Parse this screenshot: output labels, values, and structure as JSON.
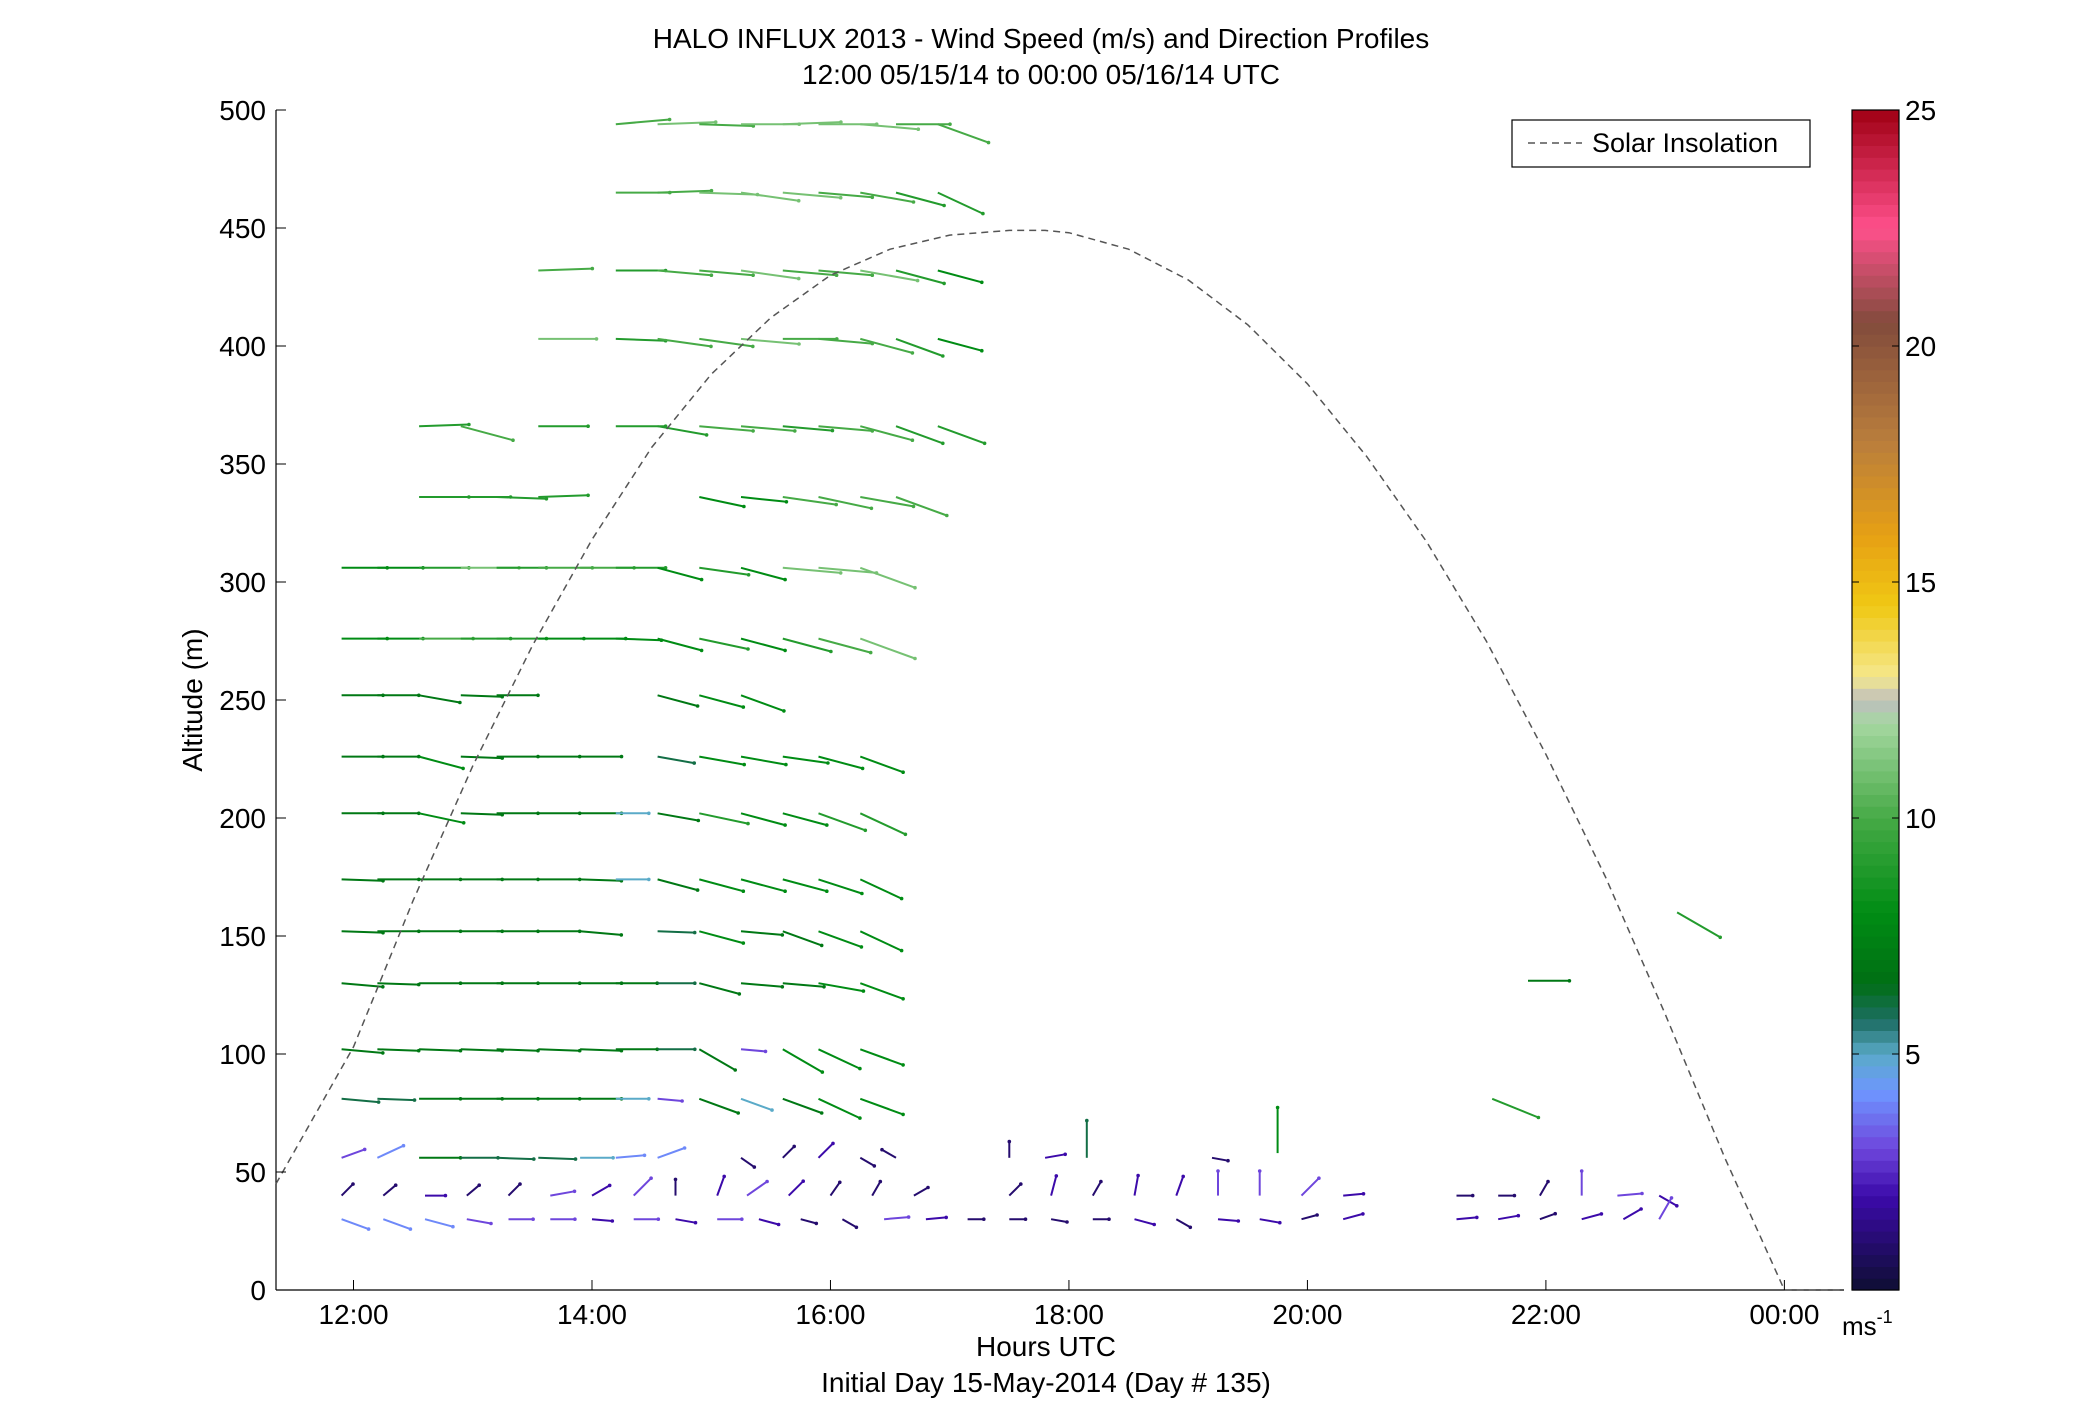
{
  "chart_data": {
    "type": "scatter",
    "title": "HALO INFLUX 2013 - Wind Speed (m/s) and Direction Profiles",
    "subtitle": "12:00 05/15/14 to 00:00 05/16/14  UTC",
    "xlabel": "Hours UTC",
    "footer": "Initial Day 15-May-2014 (Day # 135)",
    "ylabel": "Altitude (m)",
    "xlim": [
      11.35,
      24.5
    ],
    "ylim": [
      0,
      500
    ],
    "xticks": [
      {
        "value": 12,
        "label": "12:00"
      },
      {
        "value": 14,
        "label": "14:00"
      },
      {
        "value": 16,
        "label": "16:00"
      },
      {
        "value": 18,
        "label": "18:00"
      },
      {
        "value": 20,
        "label": "20:00"
      },
      {
        "value": 22,
        "label": "22:00"
      },
      {
        "value": 24,
        "label": "00:00"
      }
    ],
    "yticks": [
      {
        "value": 0,
        "label": "0"
      },
      {
        "value": 50,
        "label": "50"
      },
      {
        "value": 100,
        "label": "100"
      },
      {
        "value": 150,
        "label": "150"
      },
      {
        "value": 200,
        "label": "200"
      },
      {
        "value": 250,
        "label": "250"
      },
      {
        "value": 300,
        "label": "300"
      },
      {
        "value": 350,
        "label": "350"
      },
      {
        "value": 400,
        "label": "400"
      },
      {
        "value": 450,
        "label": "450"
      },
      {
        "value": 500,
        "label": "500"
      }
    ],
    "legend": {
      "label": "Solar Insolation",
      "placement": "top-right"
    },
    "colorbar": {
      "label": "ms",
      "label_superscript": "-1",
      "range": [
        0,
        25
      ],
      "ticks": [
        {
          "value": 5,
          "label": "5"
        },
        {
          "value": 10,
          "label": "10"
        },
        {
          "value": 15,
          "label": "15"
        },
        {
          "value": 20,
          "label": "20"
        },
        {
          "value": 25,
          "label": "25"
        }
      ]
    },
    "solar_insolation": {
      "style": "dashed",
      "x": [
        11.35,
        12.0,
        12.5,
        13.0,
        13.5,
        14.0,
        14.5,
        15.0,
        15.5,
        16.0,
        16.5,
        17.0,
        17.5,
        17.8,
        18.0,
        18.5,
        19.0,
        19.5,
        20.0,
        20.5,
        21.0,
        21.5,
        22.0,
        22.5,
        23.0,
        23.5,
        24.0,
        24.5
      ],
      "y": [
        45,
        103,
        165,
        222,
        273,
        318,
        357,
        388,
        412,
        430,
        441,
        447,
        449,
        449,
        448,
        441,
        428,
        409,
        384,
        353,
        317,
        275,
        227,
        175,
        117,
        56,
        0,
        0
      ]
    },
    "arrow_series": [
      {
        "altitude": 494,
        "x": [
          14.2,
          14.55,
          14.9,
          15.25,
          15.6,
          15.9,
          16.25,
          16.55,
          16.9
        ],
        "speed": [
          10,
          11,
          10,
          11,
          11,
          11,
          11,
          10,
          10
        ],
        "direction_deg": [
          265,
          268,
          272,
          270,
          268,
          270,
          275,
          270,
          290
        ]
      },
      {
        "altitude": 465,
        "x": [
          14.2,
          14.55,
          14.9,
          15.25,
          15.6,
          15.9,
          16.25,
          16.55,
          16.9
        ],
        "speed": [
          10,
          10,
          11,
          11,
          11,
          10,
          10,
          9,
          9
        ],
        "direction_deg": [
          270,
          268,
          272,
          278,
          275,
          275,
          280,
          285,
          295
        ]
      },
      {
        "altitude": 432,
        "x": [
          13.55,
          14.2,
          14.55,
          14.9,
          15.25,
          15.6,
          15.9,
          16.25,
          16.55,
          16.9
        ],
        "speed": [
          10,
          9,
          10,
          10,
          11,
          10,
          10,
          11,
          9,
          8
        ],
        "direction_deg": [
          268,
          270,
          275,
          275,
          278,
          275,
          275,
          280,
          285,
          285
        ]
      },
      {
        "altitude": 403,
        "x": [
          13.55,
          14.2,
          14.55,
          14.9,
          15.25,
          15.6,
          15.9,
          16.25,
          16.55,
          16.9
        ],
        "speed": [
          11,
          9,
          10,
          10,
          11,
          10,
          10,
          10,
          9,
          8
        ],
        "direction_deg": [
          270,
          272,
          278,
          278,
          275,
          270,
          275,
          285,
          290,
          285
        ]
      },
      {
        "altitude": 366,
        "x": [
          12.55,
          12.9,
          13.55,
          14.2,
          14.55,
          14.9,
          15.25,
          15.6,
          15.9,
          16.25,
          16.55,
          16.9
        ],
        "speed": [
          9,
          10,
          9,
          9,
          9,
          10,
          10,
          9,
          10,
          10,
          9,
          9
        ],
        "direction_deg": [
          268,
          285,
          270,
          270,
          280,
          275,
          275,
          275,
          275,
          285,
          290,
          290
        ]
      },
      {
        "altitude": 336,
        "x": [
          12.55,
          12.9,
          13.2,
          13.55,
          14.9,
          15.25,
          15.6,
          15.9,
          16.25,
          16.55
        ],
        "speed": [
          9,
          9,
          9,
          9,
          8,
          8,
          10,
          10,
          10,
          10
        ],
        "direction_deg": [
          270,
          270,
          272,
          268,
          282,
          276,
          278,
          282,
          280,
          290
        ]
      },
      {
        "altitude": 306,
        "x": [
          11.9,
          12.2,
          12.55,
          12.9,
          13.2,
          13.55,
          13.9,
          14.2,
          14.55,
          14.9,
          15.25,
          15.6,
          15.9,
          16.25
        ],
        "speed": [
          8,
          8,
          9,
          11,
          9,
          10,
          10,
          9,
          8,
          9,
          8,
          11,
          11,
          11
        ],
        "direction_deg": [
          270,
          270,
          270,
          270,
          270,
          270,
          270,
          270,
          285,
          278,
          285,
          275,
          275,
          290
        ]
      },
      {
        "altitude": 276,
        "x": [
          11.9,
          12.2,
          12.55,
          12.9,
          13.2,
          13.55,
          13.9,
          14.2,
          14.55,
          14.9,
          15.25,
          15.6,
          15.9,
          16.25
        ],
        "speed": [
          8,
          8,
          10,
          9,
          9,
          8,
          8,
          8,
          8,
          9,
          8,
          9,
          10,
          11
        ],
        "direction_deg": [
          270,
          270,
          270,
          270,
          270,
          270,
          270,
          272,
          285,
          282,
          285,
          285,
          285,
          290
        ]
      },
      {
        "altitude": 252,
        "x": [
          11.9,
          12.2,
          12.55,
          12.9,
          13.2,
          14.55,
          14.9,
          15.25
        ],
        "speed": [
          7,
          7,
          7,
          7,
          7,
          7,
          8,
          8
        ],
        "direction_deg": [
          270,
          270,
          280,
          272,
          270,
          285,
          285,
          290
        ]
      },
      {
        "altitude": 226,
        "x": [
          11.9,
          12.2,
          12.55,
          12.9,
          13.2,
          13.55,
          13.9,
          14.55,
          14.9,
          15.25,
          15.6,
          15.9,
          16.25
        ],
        "speed": [
          7,
          7,
          8,
          7,
          7,
          7,
          7,
          6,
          8,
          8,
          8,
          8,
          8
        ],
        "direction_deg": [
          270,
          270,
          285,
          272,
          270,
          270,
          270,
          280,
          280,
          280,
          278,
          285,
          290
        ]
      },
      {
        "altitude": 202,
        "x": [
          11.9,
          12.2,
          12.55,
          12.9,
          13.2,
          13.55,
          13.9,
          14.2,
          14.55,
          14.9,
          15.25,
          15.6,
          15.9,
          16.25
        ],
        "speed": [
          7,
          7,
          8,
          7,
          7,
          7,
          7,
          5,
          7,
          9,
          8,
          8,
          9,
          9
        ],
        "direction_deg": [
          270,
          270,
          282,
          272,
          270,
          270,
          270,
          270,
          280,
          282,
          285,
          285,
          290,
          295
        ]
      },
      {
        "altitude": 174,
        "x": [
          11.9,
          12.2,
          12.55,
          12.9,
          13.2,
          13.55,
          13.9,
          14.2,
          14.55,
          14.9,
          15.25,
          15.6,
          15.9,
          16.25
        ],
        "speed": [
          7,
          7,
          7,
          7,
          7,
          7,
          7,
          5,
          7,
          8,
          8,
          8,
          8,
          8
        ],
        "direction_deg": [
          272,
          270,
          270,
          270,
          270,
          270,
          272,
          270,
          285,
          285,
          285,
          285,
          288,
          295
        ]
      },
      {
        "altitude": 152,
        "x": [
          11.9,
          12.2,
          12.55,
          12.9,
          13.2,
          13.55,
          13.9,
          14.55,
          14.9,
          15.25,
          15.6,
          15.9,
          16.25
        ],
        "speed": [
          7,
          7,
          7,
          7,
          7,
          7,
          7,
          6,
          8,
          7,
          7,
          8,
          8
        ],
        "direction_deg": [
          272,
          270,
          270,
          270,
          270,
          270,
          275,
          272,
          285,
          275,
          290,
          290,
          295
        ]
      },
      {
        "altitude": 130,
        "x": [
          11.9,
          12.2,
          12.55,
          12.9,
          13.2,
          13.55,
          13.9,
          14.2,
          14.55,
          14.9,
          15.25,
          15.6,
          15.9,
          16.25
        ],
        "speed": [
          7,
          7,
          7,
          7,
          7,
          7,
          7,
          7,
          6,
          7,
          7,
          7,
          8,
          8
        ],
        "direction_deg": [
          275,
          272,
          270,
          270,
          270,
          270,
          270,
          270,
          270,
          285,
          275,
          275,
          280,
          290
        ]
      },
      {
        "altitude": 102,
        "x": [
          11.9,
          12.2,
          12.55,
          12.9,
          13.2,
          13.55,
          13.9,
          14.2,
          14.55,
          14.9,
          15.25,
          15.6,
          15.9,
          16.25
        ],
        "speed": [
          7,
          7,
          7,
          7,
          7,
          7,
          7,
          7,
          6,
          7,
          3,
          8,
          8,
          8
        ],
        "direction_deg": [
          275,
          272,
          272,
          272,
          272,
          272,
          272,
          270,
          270,
          300,
          275,
          300,
          295,
          290
        ]
      },
      {
        "altitude": 81,
        "x": [
          11.9,
          12.2,
          12.55,
          12.9,
          13.2,
          13.55,
          13.9,
          14.2,
          14.55,
          14.9,
          15.25,
          15.6,
          15.9,
          16.25,
          21.55
        ],
        "speed": [
          6,
          6,
          7,
          7,
          7,
          7,
          7,
          5,
          3,
          7,
          5,
          7,
          8,
          8,
          9
        ],
        "direction_deg": [
          275,
          272,
          270,
          270,
          270,
          270,
          270,
          270,
          275,
          290,
          290,
          290,
          295,
          290,
          292
        ]
      },
      {
        "altitude": 56,
        "x": [
          11.9,
          12.2,
          12.55,
          12.9,
          13.2,
          13.55,
          13.9,
          14.2,
          14.55,
          15.25,
          15.6,
          15.9,
          16.25,
          16.55,
          17.5,
          17.8,
          18.15,
          19.2
        ],
        "speed": [
          3,
          4,
          7,
          6,
          6,
          6,
          5,
          4,
          4,
          1,
          1,
          2,
          1,
          1,
          1,
          2,
          6,
          1
        ],
        "direction_deg": [
          250,
          245,
          270,
          270,
          272,
          272,
          270,
          265,
          250,
          305,
          225,
          225,
          300,
          120,
          180,
          260,
          180,
          280
        ]
      },
      {
        "altitude": 40,
        "x": [
          11.9,
          12.25,
          12.6,
          12.95,
          13.3,
          13.65,
          14.0,
          14.35,
          14.7,
          15.05,
          15.3,
          15.65,
          16.0,
          16.35,
          16.7,
          17.5,
          17.85,
          18.2,
          18.55,
          18.9,
          19.25,
          19.6,
          19.95,
          20.3,
          21.25,
          21.6,
          21.95,
          22.3,
          22.6,
          22.95
        ],
        "speed": [
          1,
          1,
          2,
          1,
          1,
          3,
          2,
          3,
          1,
          2,
          3,
          2,
          1,
          1,
          1,
          1,
          2,
          1,
          2,
          2,
          3,
          3,
          3,
          2,
          1,
          1,
          1,
          3,
          3,
          2
        ],
        "direction_deg": [
          225,
          230,
          270,
          230,
          225,
          260,
          240,
          225,
          180,
          200,
          235,
          225,
          215,
          210,
          240,
          225,
          195,
          210,
          190,
          200,
          180,
          180,
          225,
          265,
          270,
          270,
          210,
          180,
          265,
          300
        ]
      },
      {
        "altitude": 30,
        "x": [
          11.9,
          12.25,
          12.6,
          12.95,
          13.3,
          13.65,
          14.0,
          14.35,
          14.7,
          15.05,
          15.4,
          15.75,
          16.1,
          16.45,
          16.8,
          17.15,
          17.5,
          17.85,
          18.2,
          18.55,
          18.9,
          19.25,
          19.6,
          19.95,
          20.3,
          21.25,
          21.6,
          21.95,
          22.3,
          22.65,
          22.95
        ],
        "speed": [
          4,
          4,
          4,
          3,
          3,
          3,
          2,
          3,
          2,
          3,
          2,
          1,
          1,
          3,
          2,
          1,
          1,
          1,
          1,
          2,
          1,
          2,
          2,
          1,
          2,
          2,
          2,
          1,
          2,
          2,
          3
        ],
        "direction_deg": [
          290,
          290,
          285,
          280,
          270,
          270,
          275,
          270,
          280,
          270,
          285,
          285,
          300,
          265,
          265,
          270,
          270,
          280,
          270,
          285,
          300,
          275,
          280,
          255,
          255,
          265,
          260,
          250,
          255,
          240,
          210
        ]
      },
      {
        "altitude": 160,
        "x": [
          23.1
        ],
        "speed": [
          9
        ],
        "direction_deg": [
          300
        ]
      },
      {
        "altitude": 131,
        "x": [
          21.85
        ],
        "speed": [
          7
        ],
        "direction_deg": [
          270
        ]
      },
      {
        "altitude": 58,
        "x": [
          19.75
        ],
        "speed": [
          8
        ],
        "direction_deg": [
          180
        ]
      }
    ]
  }
}
